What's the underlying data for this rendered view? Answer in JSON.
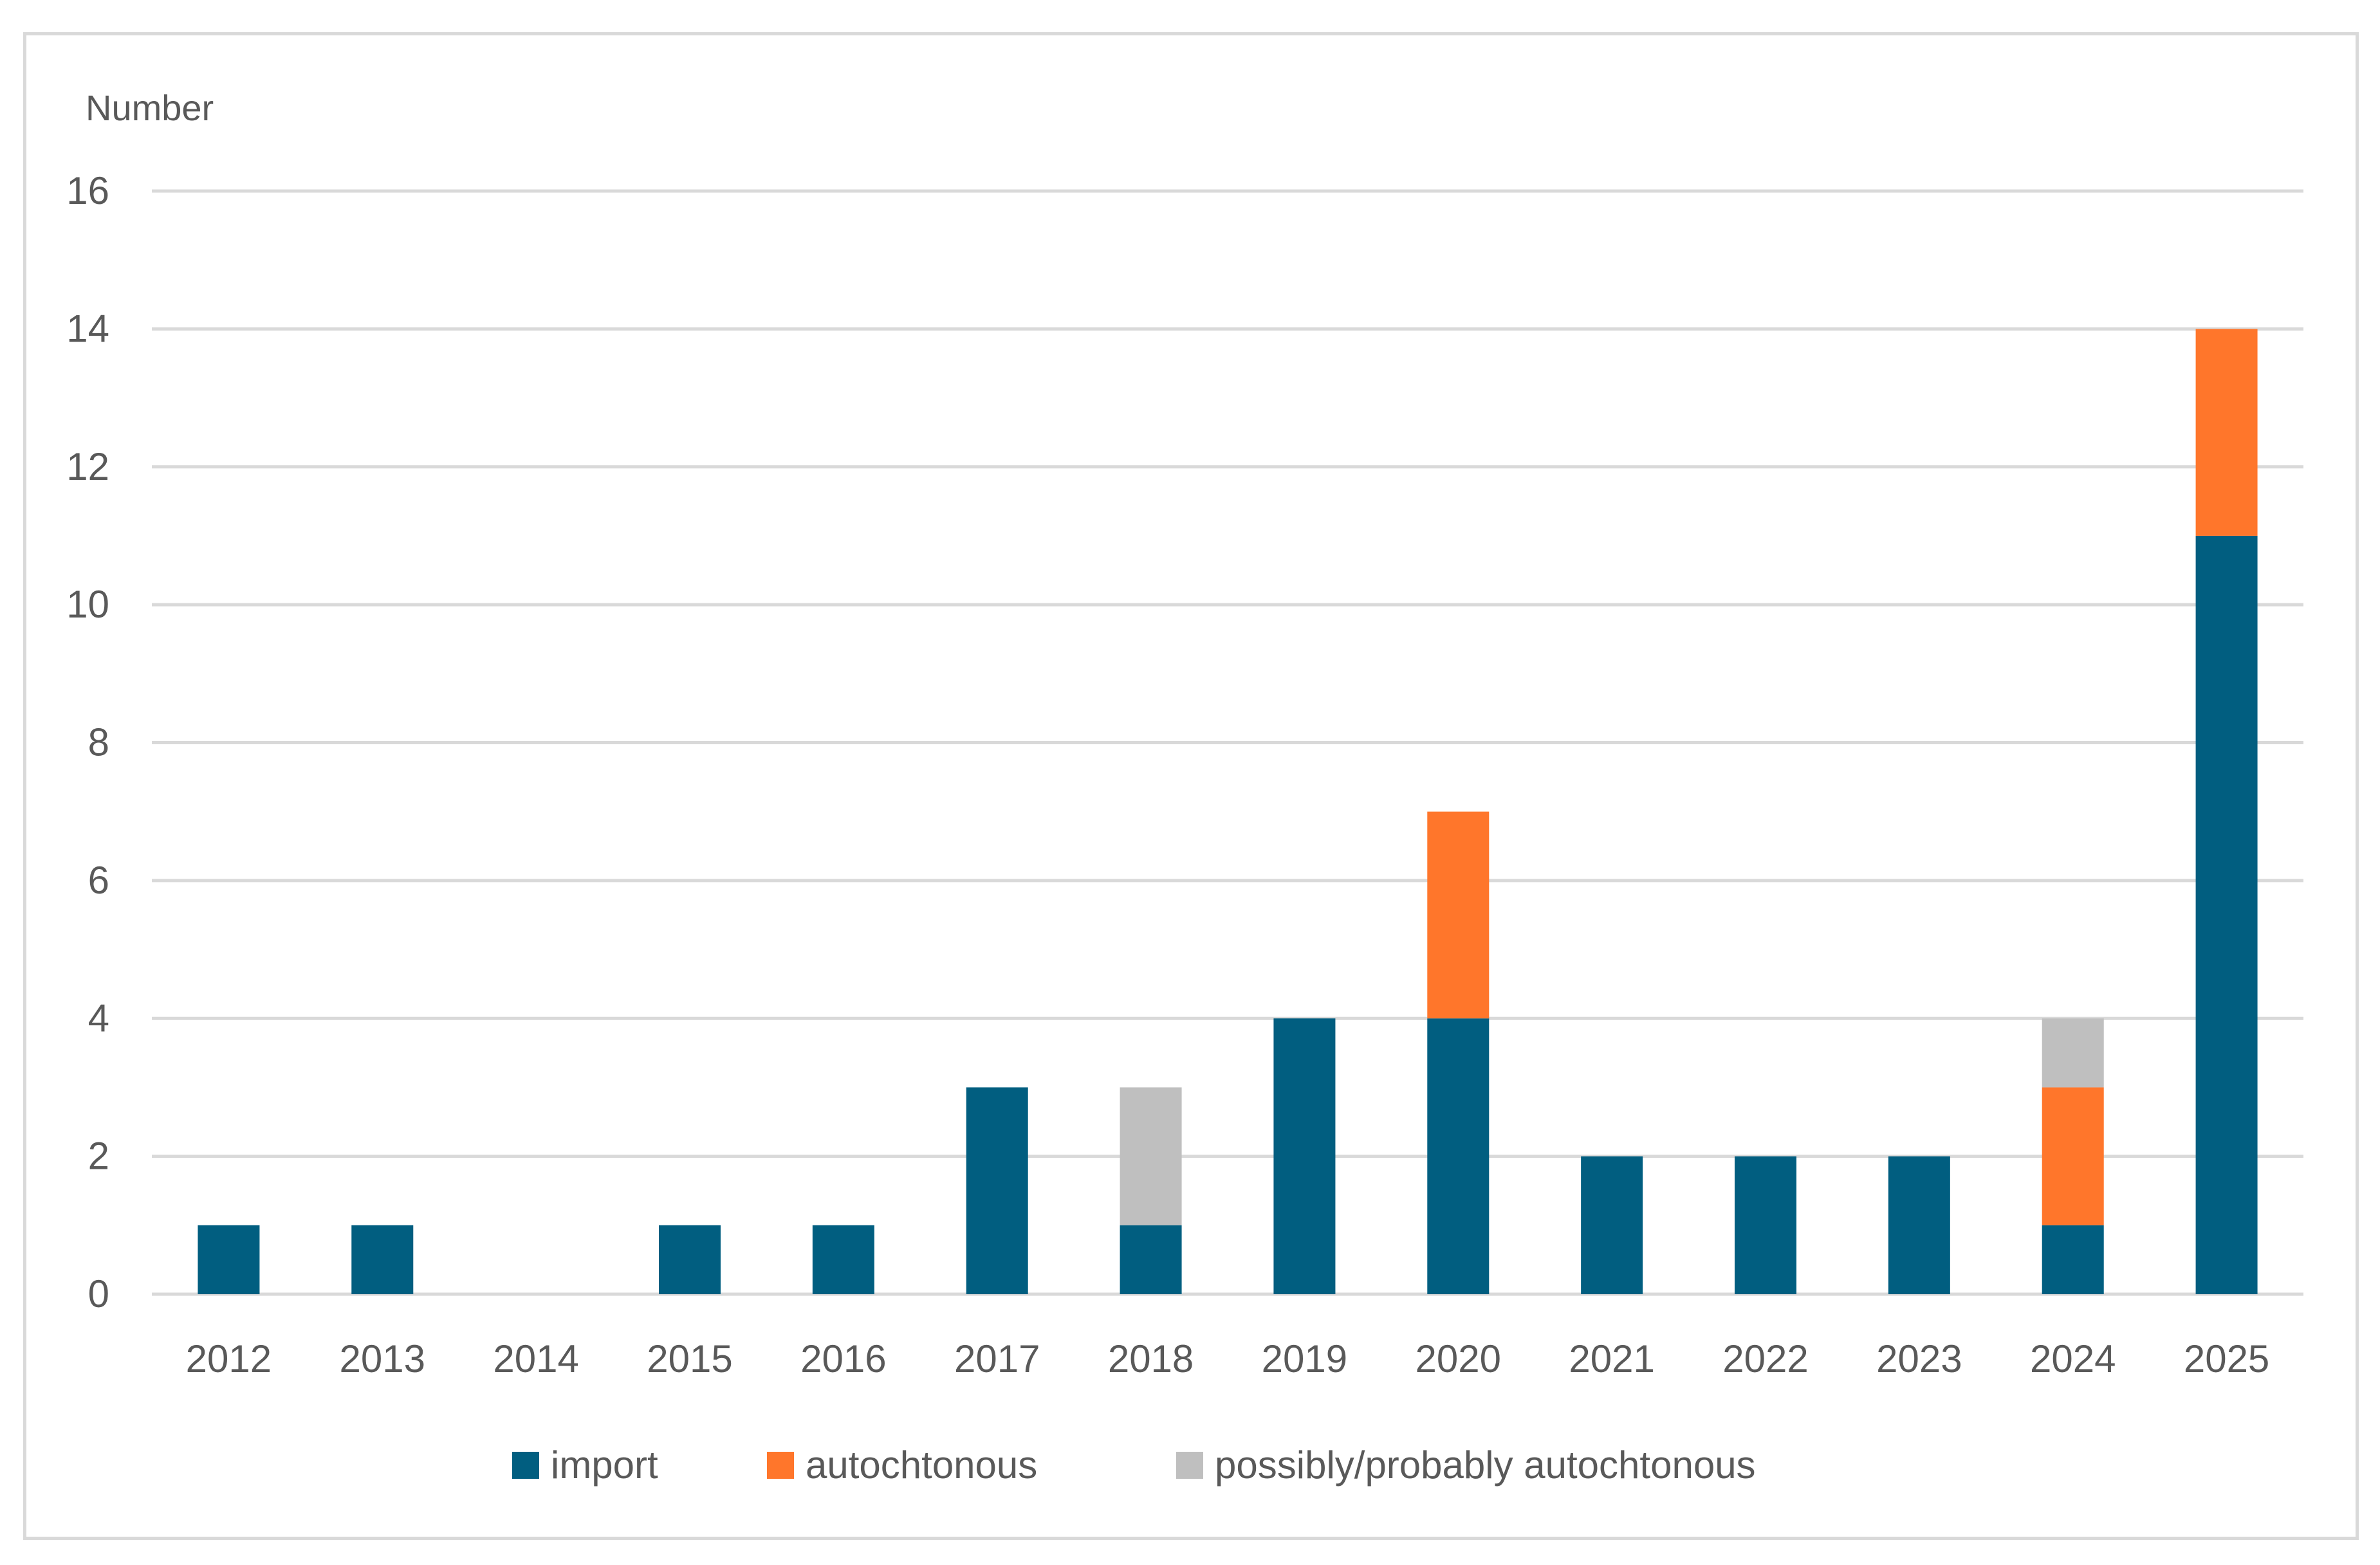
{
  "chart_data": {
    "type": "bar",
    "stacked": true,
    "ylabel": "Number",
    "xlabel": "",
    "title": "",
    "ylim": [
      0,
      16
    ],
    "yticks": [
      0,
      2,
      4,
      6,
      8,
      10,
      12,
      14,
      16
    ],
    "grid": true,
    "legend_position": "bottom",
    "categories": [
      "2012",
      "2013",
      "2014",
      "2015",
      "2016",
      "2017",
      "2018",
      "2019",
      "2020",
      "2021",
      "2022",
      "2023",
      "2024",
      "2025"
    ],
    "series": [
      {
        "name": "import",
        "color": "#015e80",
        "values": [
          1,
          1,
          0,
          1,
          1,
          3,
          1,
          4,
          4,
          2,
          2,
          2,
          1,
          11
        ]
      },
      {
        "name": "autochtonous",
        "color": "#ff762b",
        "values": [
          0,
          0,
          0,
          0,
          0,
          0,
          0,
          0,
          3,
          0,
          0,
          0,
          2,
          3
        ]
      },
      {
        "name": "possibly/probably autochtonous",
        "color": "#bfbfbf",
        "values": [
          0,
          0,
          0,
          0,
          0,
          0,
          2,
          0,
          0,
          0,
          0,
          0,
          1,
          0
        ]
      }
    ]
  }
}
